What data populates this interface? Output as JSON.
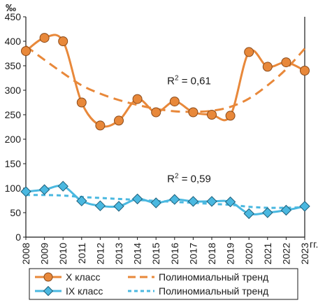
{
  "chart_data": {
    "type": "line",
    "y_unit": "‰",
    "x_unit": "гг.",
    "x": [
      2008,
      2009,
      2010,
      2011,
      2012,
      2013,
      2014,
      2015,
      2016,
      2017,
      2018,
      2019,
      2020,
      2021,
      2022,
      2023
    ],
    "ylim": [
      0,
      450
    ],
    "yticks": [
      0,
      50,
      100,
      150,
      200,
      250,
      300,
      350,
      400,
      450
    ],
    "grid": false,
    "legend_position": "bottom",
    "series": [
      {
        "name": "X класс",
        "kind": "data",
        "marker": "circle",
        "color": "#E8883A",
        "values": [
          380,
          407,
          400,
          275,
          228,
          238,
          282,
          255,
          277,
          255,
          250,
          248,
          378,
          348,
          357,
          340
        ]
      },
      {
        "name": "Полиномиальный тренд",
        "kind": "trend",
        "color": "#E8883A",
        "values": [
          390,
          362,
          335,
          310,
          293,
          280,
          270,
          262,
          257,
          256,
          258,
          266,
          283,
          310,
          343,
          385
        ]
      },
      {
        "name": "IX класс",
        "kind": "data",
        "marker": "diamond",
        "color": "#4AB8E0",
        "values": [
          93,
          97,
          104,
          74,
          64,
          63,
          78,
          70,
          77,
          73,
          73,
          72,
          48,
          50,
          55,
          63
        ]
      },
      {
        "name": "Полиномиальный тренд",
        "kind": "trend",
        "color": "#4AB8E0",
        "values": [
          86,
          86,
          85,
          82,
          80,
          78,
          76,
          74,
          72,
          70,
          68,
          66,
          62,
          60,
          60,
          61
        ]
      }
    ],
    "annotations": [
      {
        "text_main": "R",
        "text_sup": "2",
        "text_rest": " = 0,61",
        "x": 2015.6,
        "y": 312
      },
      {
        "text_main": "R",
        "text_sup": "2",
        "text_rest": " = 0,59",
        "x": 2015.6,
        "y": 112
      }
    ]
  }
}
